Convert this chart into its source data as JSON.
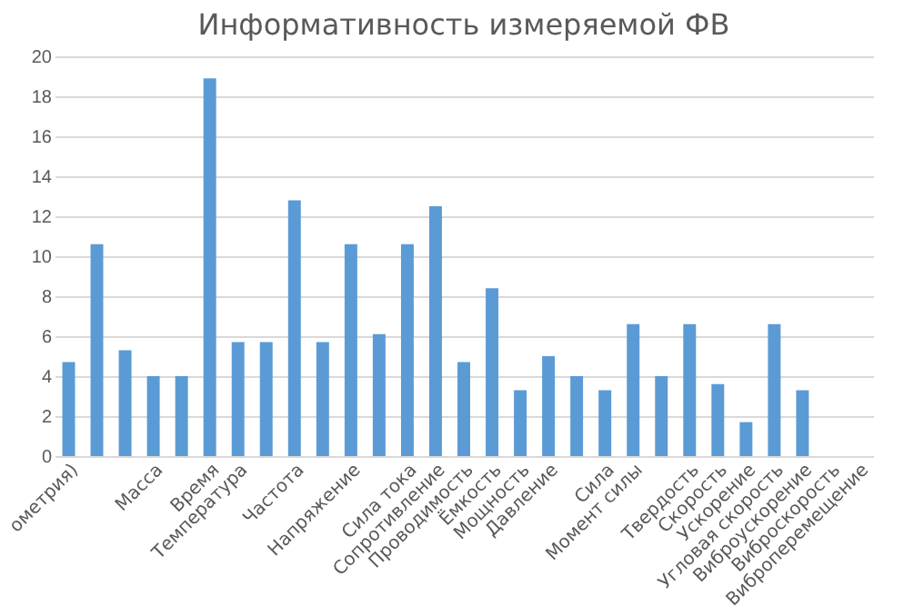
{
  "chart_data": {
    "type": "bar",
    "title": "Информативность измеряемой ФВ",
    "categories": [
      "ометрия)",
      null,
      null,
      "Масса",
      null,
      "Время",
      "Температура",
      null,
      "Частота",
      null,
      "Напряжение",
      null,
      "Сила тока",
      "Сопротивление",
      "Проводимость",
      "Ёмкость",
      "Мощность",
      "Давление",
      null,
      "Сила",
      "Момент силы",
      null,
      "Твердость",
      "Скорость",
      "Ускорение",
      "Угловая скорость",
      "Виброускорение",
      "Виброскорость",
      "Виброперемещение"
    ],
    "values": [
      4.7,
      10.6,
      5.3,
      4.0,
      4.0,
      18.9,
      5.7,
      5.7,
      12.8,
      5.7,
      10.6,
      6.1,
      10.6,
      12.5,
      4.7,
      8.4,
      3.3,
      5.0,
      4.0,
      3.3,
      6.6,
      4.0,
      6.6,
      3.6,
      1.7,
      6.6,
      3.3,
      null,
      null
    ],
    "color": "#5b9bd5",
    "ylim": [
      0,
      20
    ],
    "yticks": [
      0,
      2,
      4,
      6,
      8,
      10,
      12,
      14,
      16,
      18,
      20
    ],
    "grid": "y"
  }
}
